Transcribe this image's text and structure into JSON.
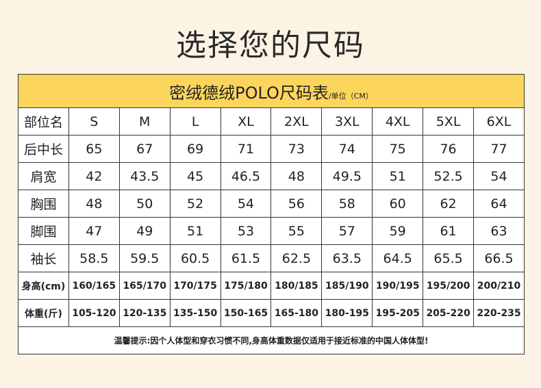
{
  "header": {
    "title": "选择您的尺码"
  },
  "table": {
    "title": "密绒德绒POLO尺码表",
    "unit": "/单位（CM）",
    "rows": [
      [
        "部位名",
        "S",
        "M",
        "L",
        "XL",
        "2XL",
        "3XL",
        "4XL",
        "5XL",
        "6XL"
      ],
      [
        "后中长",
        "65",
        "67",
        "69",
        "71",
        "73",
        "74",
        "75",
        "76",
        "77"
      ],
      [
        "肩宽",
        "42",
        "43.5",
        "45",
        "46.5",
        "48",
        "49.5",
        "51",
        "52.5",
        "54"
      ],
      [
        "胸围",
        "48",
        "50",
        "52",
        "54",
        "56",
        "58",
        "60",
        "62",
        "64"
      ],
      [
        "脚围",
        "47",
        "49",
        "51",
        "53",
        "55",
        "57",
        "59",
        "61",
        "63"
      ],
      [
        "袖长",
        "58.5",
        "59.5",
        "60.5",
        "61.5",
        "62.5",
        "63.5",
        "64.5",
        "65.5",
        "66.5"
      ],
      [
        "身高(cm)",
        "160/165",
        "165/170",
        "170/175",
        "175/180",
        "180/185",
        "185/190",
        "190/195",
        "195/200",
        "200/210"
      ],
      [
        "体重(斤)",
        "105-120",
        "120-135",
        "135-150",
        "150-165",
        "165-180",
        "180-195",
        "195-205",
        "205-220",
        "220-235"
      ]
    ],
    "note": "温馨提示:因个人体型和穿衣习惯不同,身高体重数据仅适用于接近标准的中国人体体型!"
  }
}
